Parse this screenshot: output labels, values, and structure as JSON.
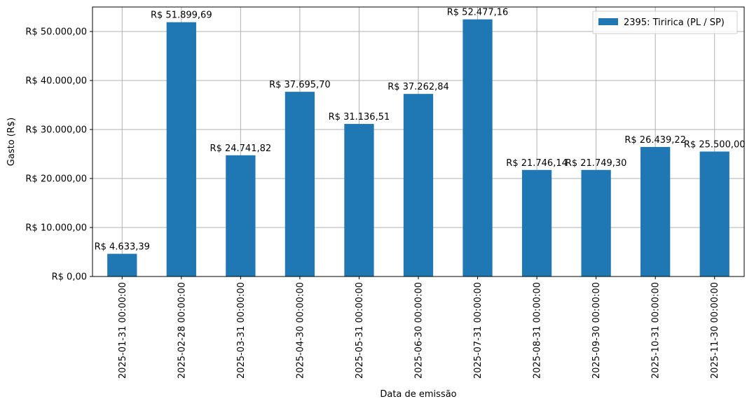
{
  "chart_data": {
    "type": "bar",
    "categories": [
      "2025-01-31 00:00:00",
      "2025-02-28 00:00:00",
      "2025-03-31 00:00:00",
      "2025-04-30 00:00:00",
      "2025-05-31 00:00:00",
      "2025-06-30 00:00:00",
      "2025-07-31 00:00:00",
      "2025-08-31 00:00:00",
      "2025-09-30 00:00:00",
      "2025-10-31 00:00:00",
      "2025-11-30 00:00:00"
    ],
    "series": [
      {
        "name": "2395: Tiririca (PL / SP)",
        "values": [
          4633.39,
          51899.69,
          24741.82,
          37695.7,
          31136.51,
          37262.84,
          52477.16,
          21746.14,
          21749.3,
          26439.22,
          25500.0
        ],
        "data_labels": [
          "R$ 4.633,39",
          "R$ 51.899,69",
          "R$ 24.741,82",
          "R$ 37.695,70",
          "R$ 31.136,51",
          "R$ 37.262,84",
          "R$ 52.477,16",
          "R$ 21.746,14",
          "R$ 21.749,30",
          "R$ 26.439,22",
          "R$ 25.500,00"
        ],
        "color": "#1f77b4"
      }
    ],
    "title": "",
    "xlabel": "Data de emissão",
    "ylabel": "Gasto (R$)",
    "ylim": [
      0,
      55000
    ],
    "yticks": [
      0,
      10000,
      20000,
      30000,
      40000,
      50000
    ],
    "ytick_labels": [
      "R$ 0,00",
      "R$ 10.000,00",
      "R$ 20.000,00",
      "R$ 30.000,00",
      "R$ 40.000,00",
      "R$ 50.000,00"
    ],
    "grid": true,
    "grid_color": "#b0b0b0",
    "legend_position": "top-right"
  }
}
